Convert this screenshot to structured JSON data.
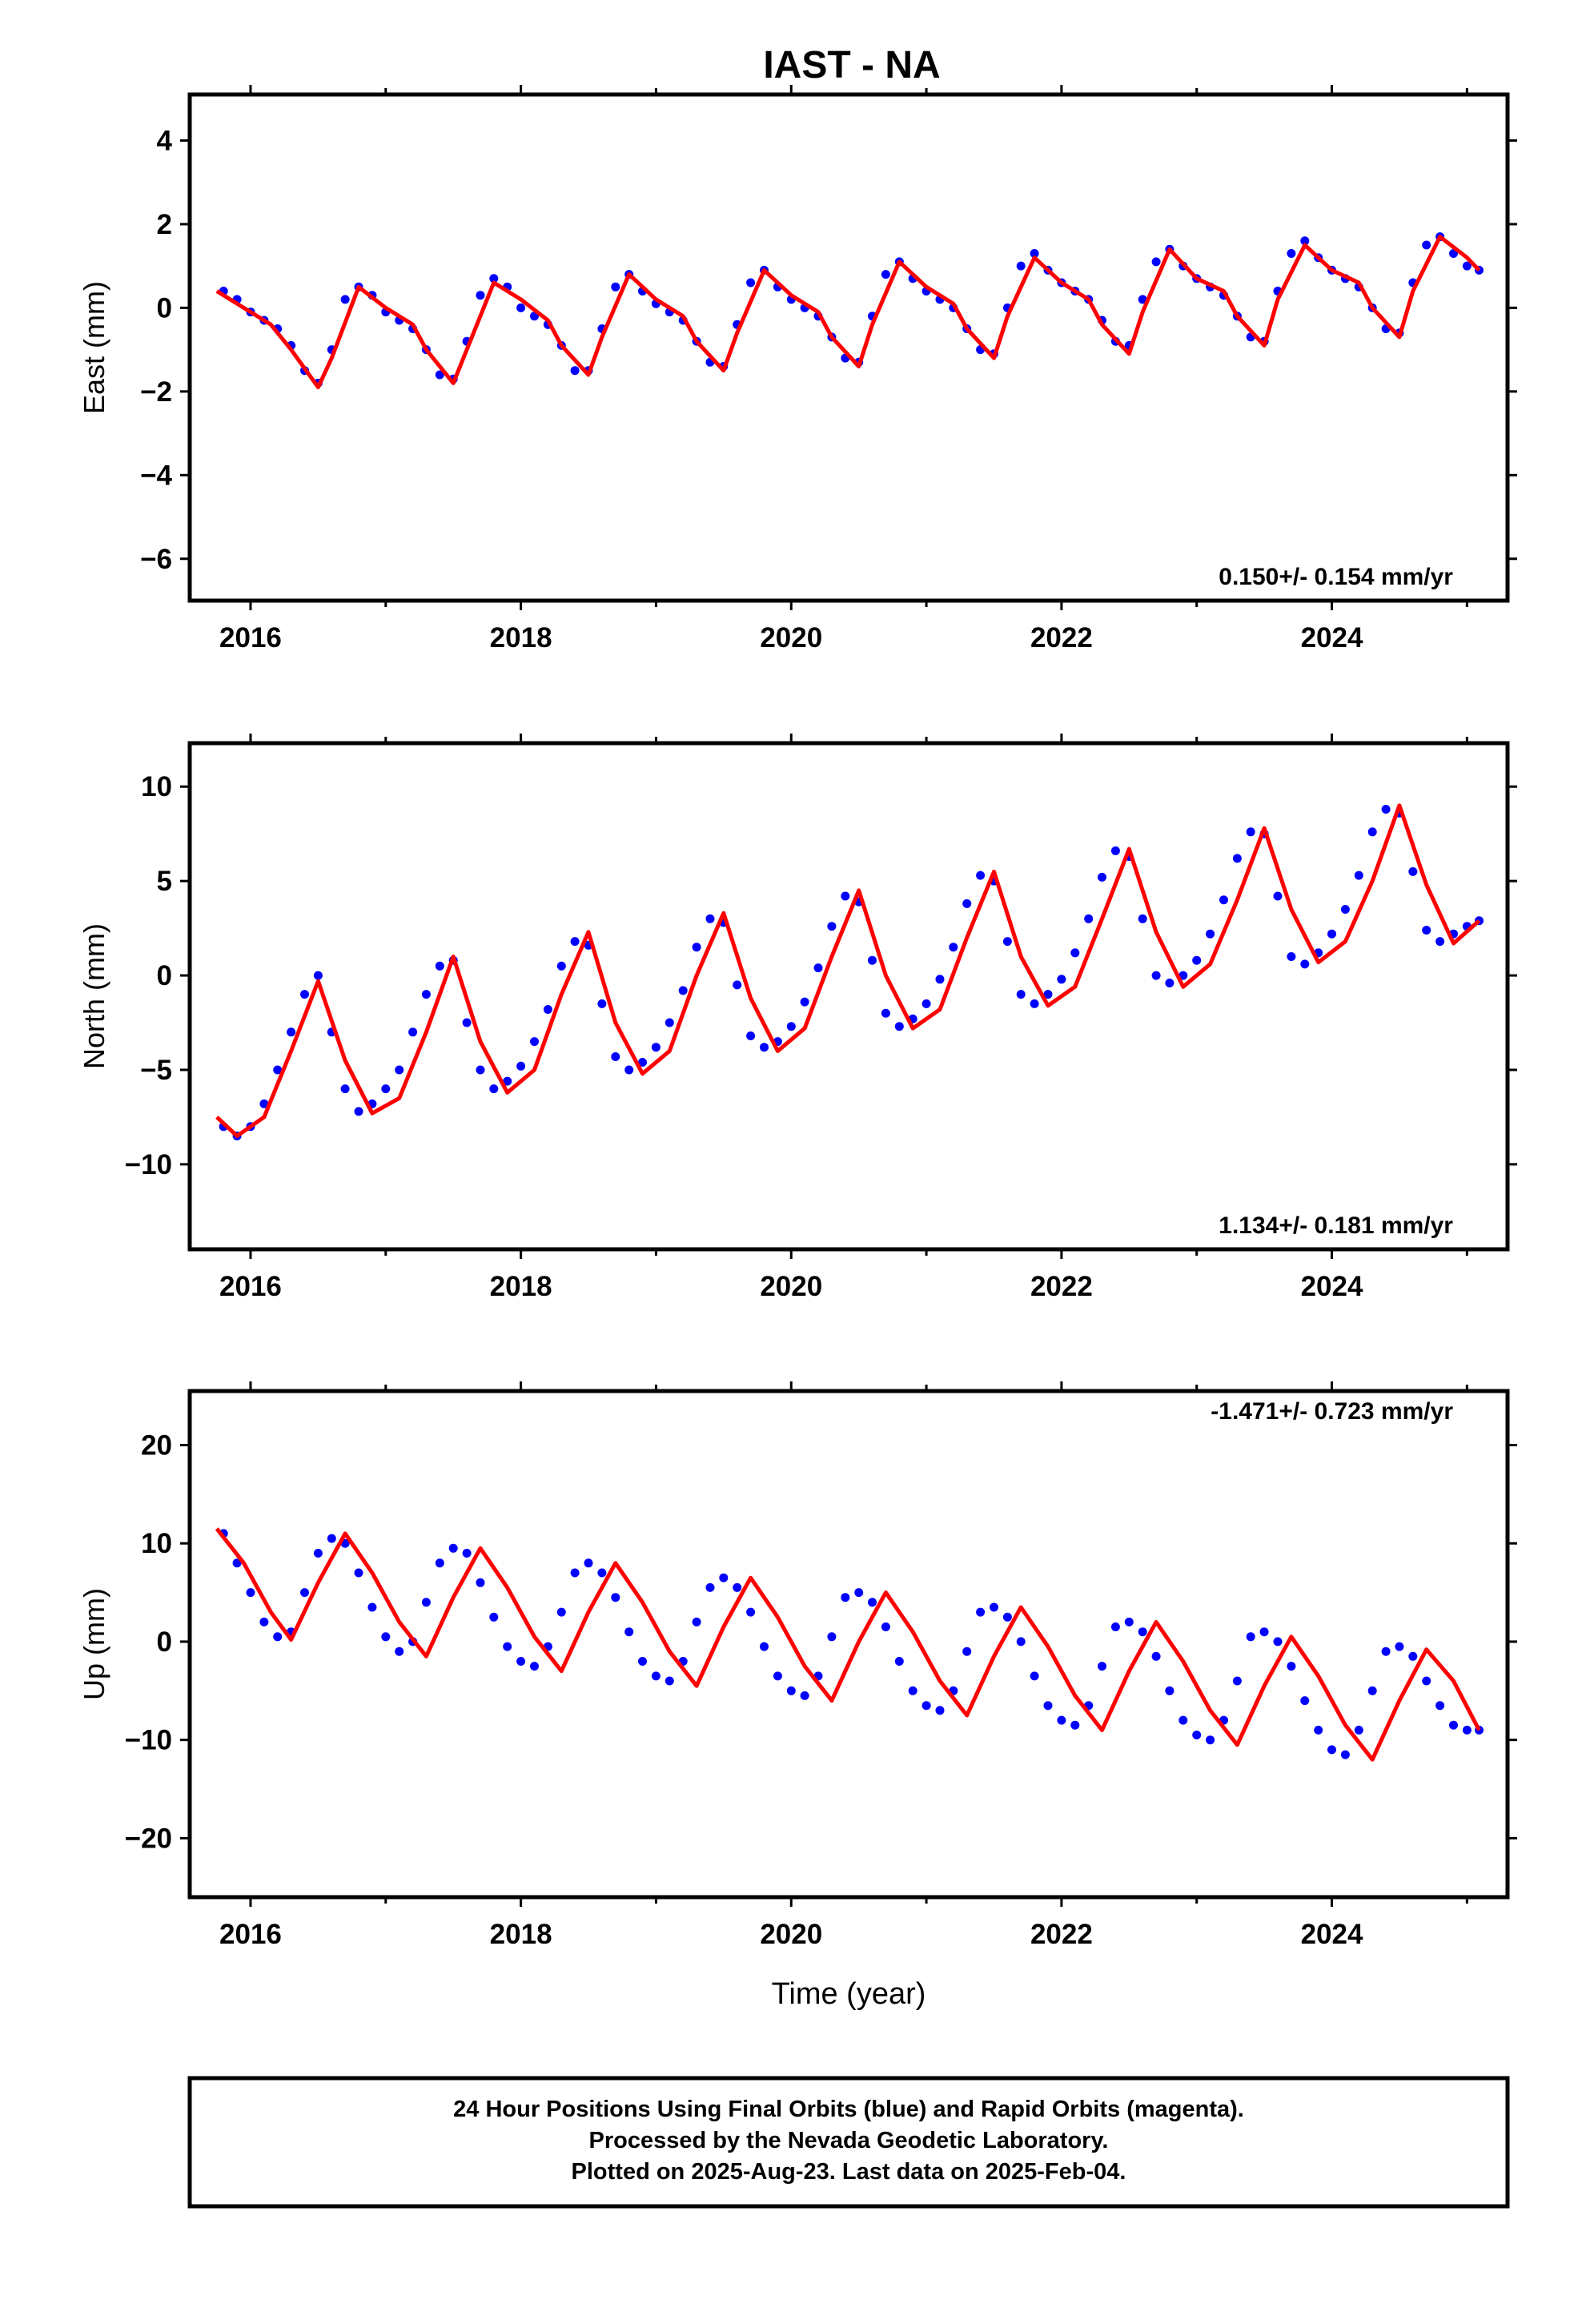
{
  "title": "IAST - NA",
  "xlabel": "Time (year)",
  "footer": [
    "24 Hour Positions Using Final Orbits (blue) and Rapid Orbits (magenta).",
    "Processed by the Nevada Geodetic Laboratory.",
    "Plotted on 2025-Aug-23. Last data on 2025-Feb-04."
  ],
  "colors": {
    "points": "#0000ff",
    "fit": "#ff0000",
    "frame": "#000000"
  },
  "chart_data": [
    {
      "type": "scatter",
      "ylabel": "East (mm)",
      "rate": "0.150+/- 0.154 mm/yr",
      "xlim": [
        2015.55,
        2025.3
      ],
      "ylim": [
        -7.0,
        5.1
      ],
      "xticks": [
        2016,
        2018,
        2020,
        2022,
        2024
      ],
      "yticks": [
        4,
        2,
        0,
        -2,
        -4,
        -6
      ],
      "ytick_labels": [
        "4",
        "2",
        "0",
        "−2",
        "−4",
        "−6"
      ],
      "series": [
        {
          "kind": "points",
          "x": [
            2015.8,
            2015.9,
            2016.0,
            2016.1,
            2016.2,
            2016.3,
            2016.4,
            2016.5,
            2016.6,
            2016.7,
            2016.8,
            2016.9,
            2017.0,
            2017.1,
            2017.2,
            2017.3,
            2017.4,
            2017.5,
            2017.6,
            2017.7,
            2017.8,
            2017.9,
            2018.0,
            2018.1,
            2018.2,
            2018.3,
            2018.4,
            2018.5,
            2018.6,
            2018.7,
            2018.8,
            2018.9,
            2019.0,
            2019.1,
            2019.2,
            2019.3,
            2019.4,
            2019.5,
            2019.6,
            2019.7,
            2019.8,
            2019.9,
            2020.0,
            2020.1,
            2020.2,
            2020.3,
            2020.4,
            2020.5,
            2020.6,
            2020.7,
            2020.8,
            2020.9,
            2021.0,
            2021.1,
            2021.2,
            2021.3,
            2021.4,
            2021.5,
            2021.6,
            2021.7,
            2021.8,
            2021.9,
            2022.0,
            2022.1,
            2022.2,
            2022.3,
            2022.4,
            2022.5,
            2022.6,
            2022.7,
            2022.8,
            2022.9,
            2023.0,
            2023.1,
            2023.2,
            2023.3,
            2023.4,
            2023.5,
            2023.6,
            2023.7,
            2023.8,
            2023.9,
            2024.0,
            2024.1,
            2024.2,
            2024.3,
            2024.4,
            2024.5,
            2024.6,
            2024.7,
            2024.8,
            2024.9,
            2025.0,
            2025.09
          ],
          "y": [
            0.4,
            0.2,
            -0.1,
            -0.3,
            -0.5,
            -0.9,
            -1.5,
            -1.8,
            -1.0,
            0.2,
            0.5,
            0.3,
            -0.1,
            -0.3,
            -0.5,
            -1.0,
            -1.6,
            -1.7,
            -0.8,
            0.3,
            0.7,
            0.5,
            0.0,
            -0.2,
            -0.4,
            -0.9,
            -1.5,
            -1.5,
            -0.5,
            0.5,
            0.8,
            0.4,
            0.1,
            -0.1,
            -0.3,
            -0.8,
            -1.3,
            -1.4,
            -0.4,
            0.6,
            0.9,
            0.5,
            0.2,
            0.0,
            -0.2,
            -0.7,
            -1.2,
            -1.3,
            -0.2,
            0.8,
            1.1,
            0.7,
            0.4,
            0.2,
            0.0,
            -0.5,
            -1.0,
            -1.1,
            0.0,
            1.0,
            1.3,
            0.9,
            0.6,
            0.4,
            0.2,
            -0.3,
            -0.8,
            -0.9,
            0.2,
            1.1,
            1.4,
            1.0,
            0.7,
            0.5,
            0.3,
            -0.2,
            -0.7,
            -0.8,
            0.4,
            1.3,
            1.6,
            1.2,
            0.9,
            0.7,
            0.5,
            0.0,
            -0.5,
            -0.6,
            0.6,
            1.5,
            1.7,
            1.3,
            1.0,
            0.9
          ]
        },
        {
          "kind": "fit",
          "x": [
            2015.75,
            2015.95,
            2016.15,
            2016.3,
            2016.5,
            2016.6,
            2016.8,
            2017.0,
            2017.2,
            2017.3,
            2017.5,
            2017.6,
            2017.8,
            2018.0,
            2018.2,
            2018.3,
            2018.5,
            2018.6,
            2018.8,
            2019.0,
            2019.2,
            2019.3,
            2019.5,
            2019.6,
            2019.8,
            2020.0,
            2020.2,
            2020.3,
            2020.5,
            2020.6,
            2020.8,
            2021.0,
            2021.2,
            2021.3,
            2021.5,
            2021.6,
            2021.8,
            2022.0,
            2022.2,
            2022.3,
            2022.5,
            2022.6,
            2022.8,
            2023.0,
            2023.2,
            2023.3,
            2023.5,
            2023.6,
            2023.8,
            2024.0,
            2024.2,
            2024.3,
            2024.5,
            2024.6,
            2024.8,
            2025.0,
            2025.09
          ],
          "y": [
            0.4,
            0.0,
            -0.4,
            -1.0,
            -1.9,
            -1.2,
            0.5,
            0.0,
            -0.4,
            -1.0,
            -1.8,
            -1.0,
            0.6,
            0.2,
            -0.3,
            -0.9,
            -1.6,
            -0.7,
            0.8,
            0.2,
            -0.2,
            -0.8,
            -1.5,
            -0.6,
            0.9,
            0.3,
            -0.1,
            -0.7,
            -1.4,
            -0.4,
            1.1,
            0.5,
            0.1,
            -0.5,
            -1.2,
            -0.2,
            1.2,
            0.6,
            0.2,
            -0.4,
            -1.1,
            -0.1,
            1.4,
            0.7,
            0.4,
            -0.2,
            -0.9,
            0.2,
            1.5,
            0.9,
            0.6,
            0.0,
            -0.7,
            0.4,
            1.7,
            1.2,
            0.9
          ]
        }
      ]
    },
    {
      "type": "scatter",
      "ylabel": "North (mm)",
      "rate": "1.134+/- 0.181 mm/yr",
      "xlim": [
        2015.55,
        2025.3
      ],
      "ylim": [
        -14.5,
        12.3
      ],
      "xticks": [
        2016,
        2018,
        2020,
        2022,
        2024
      ],
      "yticks": [
        10,
        5,
        0,
        -5,
        -10
      ],
      "ytick_labels": [
        "10",
        "5",
        "0",
        "−5",
        "−10"
      ],
      "series": [
        {
          "kind": "points",
          "x": [
            2015.8,
            2015.9,
            2016.0,
            2016.1,
            2016.2,
            2016.3,
            2016.4,
            2016.5,
            2016.6,
            2016.7,
            2016.8,
            2016.9,
            2017.0,
            2017.1,
            2017.2,
            2017.3,
            2017.4,
            2017.5,
            2017.6,
            2017.7,
            2017.8,
            2017.9,
            2018.0,
            2018.1,
            2018.2,
            2018.3,
            2018.4,
            2018.5,
            2018.6,
            2018.7,
            2018.8,
            2018.9,
            2019.0,
            2019.1,
            2019.2,
            2019.3,
            2019.4,
            2019.5,
            2019.6,
            2019.7,
            2019.8,
            2019.9,
            2020.0,
            2020.1,
            2020.2,
            2020.3,
            2020.4,
            2020.5,
            2020.6,
            2020.7,
            2020.8,
            2020.9,
            2021.0,
            2021.1,
            2021.2,
            2021.3,
            2021.4,
            2021.5,
            2021.6,
            2021.7,
            2021.8,
            2021.9,
            2022.0,
            2022.1,
            2022.2,
            2022.3,
            2022.4,
            2022.5,
            2022.6,
            2022.7,
            2022.8,
            2022.9,
            2023.0,
            2023.1,
            2023.2,
            2023.3,
            2023.4,
            2023.5,
            2023.6,
            2023.7,
            2023.8,
            2023.9,
            2024.0,
            2024.1,
            2024.2,
            2024.3,
            2024.4,
            2024.5,
            2024.6,
            2024.7,
            2024.8,
            2024.9,
            2025.0,
            2025.09
          ],
          "y": [
            -8.0,
            -8.5,
            -8.0,
            -6.8,
            -5.0,
            -3.0,
            -1.0,
            0.0,
            -3.0,
            -6.0,
            -7.2,
            -6.8,
            -6.0,
            -5.0,
            -3.0,
            -1.0,
            0.5,
            0.8,
            -2.5,
            -5.0,
            -6.0,
            -5.6,
            -4.8,
            -3.5,
            -1.8,
            0.5,
            1.8,
            1.6,
            -1.5,
            -4.3,
            -5.0,
            -4.6,
            -3.8,
            -2.5,
            -0.8,
            1.5,
            3.0,
            2.8,
            -0.5,
            -3.2,
            -3.8,
            -3.5,
            -2.7,
            -1.4,
            0.4,
            2.6,
            4.2,
            3.9,
            0.8,
            -2.0,
            -2.7,
            -2.3,
            -1.5,
            -0.2,
            1.5,
            3.8,
            5.3,
            5.0,
            1.8,
            -1.0,
            -1.5,
            -1.0,
            -0.2,
            1.2,
            3.0,
            5.2,
            6.6,
            6.3,
            3.0,
            0.0,
            -0.4,
            0.0,
            0.8,
            2.2,
            4.0,
            6.2,
            7.6,
            7.5,
            4.2,
            1.0,
            0.6,
            1.2,
            2.2,
            3.5,
            5.3,
            7.6,
            8.8,
            8.6,
            5.5,
            2.4,
            1.8,
            2.2,
            2.6,
            2.9
          ]
        },
        {
          "kind": "fit",
          "x": [
            2015.75,
            2015.9,
            2016.1,
            2016.3,
            2016.5,
            2016.7,
            2016.9,
            2017.1,
            2017.3,
            2017.5,
            2017.7,
            2017.9,
            2018.1,
            2018.3,
            2018.5,
            2018.7,
            2018.9,
            2019.1,
            2019.3,
            2019.5,
            2019.7,
            2019.9,
            2020.1,
            2020.3,
            2020.5,
            2020.7,
            2020.9,
            2021.1,
            2021.3,
            2021.5,
            2021.7,
            2021.9,
            2022.1,
            2022.3,
            2022.5,
            2022.7,
            2022.9,
            2023.1,
            2023.3,
            2023.5,
            2023.7,
            2023.9,
            2024.1,
            2024.3,
            2024.5,
            2024.7,
            2024.9,
            2025.09
          ],
          "y": [
            -7.5,
            -8.5,
            -7.5,
            -4.0,
            -0.3,
            -4.5,
            -7.3,
            -6.5,
            -3.0,
            1.0,
            -3.5,
            -6.2,
            -5.0,
            -1.0,
            2.3,
            -2.5,
            -5.2,
            -4.0,
            0.0,
            3.3,
            -1.2,
            -4.0,
            -2.8,
            1.0,
            4.5,
            0.0,
            -2.8,
            -1.8,
            2.0,
            5.5,
            1.0,
            -1.6,
            -0.6,
            3.0,
            6.7,
            2.3,
            -0.6,
            0.6,
            4.0,
            7.8,
            3.5,
            0.7,
            1.8,
            5.0,
            9.0,
            4.8,
            1.7,
            2.9
          ]
        }
      ]
    },
    {
      "type": "scatter",
      "ylabel": "Up (mm)",
      "rate": "-1.471+/- 0.723 mm/yr",
      "xlim": [
        2015.55,
        2025.3
      ],
      "ylim": [
        -26.0,
        25.5
      ],
      "xticks": [
        2016,
        2018,
        2020,
        2022,
        2024
      ],
      "yticks": [
        20,
        10,
        0,
        -10,
        -20
      ],
      "ytick_labels": [
        "20",
        "10",
        "0",
        "−10",
        "−20"
      ],
      "series": [
        {
          "kind": "points",
          "x": [
            2015.8,
            2015.9,
            2016.0,
            2016.1,
            2016.2,
            2016.3,
            2016.4,
            2016.5,
            2016.6,
            2016.7,
            2016.8,
            2016.9,
            2017.0,
            2017.1,
            2017.2,
            2017.3,
            2017.4,
            2017.5,
            2017.6,
            2017.7,
            2017.8,
            2017.9,
            2018.0,
            2018.1,
            2018.2,
            2018.3,
            2018.4,
            2018.5,
            2018.6,
            2018.7,
            2018.8,
            2018.9,
            2019.0,
            2019.1,
            2019.2,
            2019.3,
            2019.4,
            2019.5,
            2019.6,
            2019.7,
            2019.8,
            2019.9,
            2020.0,
            2020.1,
            2020.2,
            2020.3,
            2020.4,
            2020.5,
            2020.6,
            2020.7,
            2020.8,
            2020.9,
            2021.0,
            2021.1,
            2021.2,
            2021.3,
            2021.4,
            2021.5,
            2021.6,
            2021.7,
            2021.8,
            2021.9,
            2022.0,
            2022.1,
            2022.2,
            2022.3,
            2022.4,
            2022.5,
            2022.6,
            2022.7,
            2022.8,
            2022.9,
            2023.0,
            2023.1,
            2023.2,
            2023.3,
            2023.4,
            2023.5,
            2023.6,
            2023.7,
            2023.8,
            2023.9,
            2024.0,
            2024.1,
            2024.2,
            2024.3,
            2024.4,
            2024.5,
            2024.6,
            2024.7,
            2024.8,
            2024.9,
            2025.0,
            2025.09
          ],
          "y": [
            11.0,
            8.0,
            5.0,
            2.0,
            0.5,
            1.0,
            5.0,
            9.0,
            10.5,
            10.0,
            7.0,
            3.5,
            0.5,
            -1.0,
            0.0,
            4.0,
            8.0,
            9.5,
            9.0,
            6.0,
            2.5,
            -0.5,
            -2.0,
            -2.5,
            -0.5,
            3.0,
            7.0,
            8.0,
            7.0,
            4.5,
            1.0,
            -2.0,
            -3.5,
            -4.0,
            -2.0,
            2.0,
            5.5,
            6.5,
            5.5,
            3.0,
            -0.5,
            -3.5,
            -5.0,
            -5.5,
            -3.5,
            0.5,
            4.5,
            5.0,
            4.0,
            1.5,
            -2.0,
            -5.0,
            -6.5,
            -7.0,
            -5.0,
            -1.0,
            3.0,
            3.5,
            2.5,
            0.0,
            -3.5,
            -6.5,
            -8.0,
            -8.5,
            -6.5,
            -2.5,
            1.5,
            2.0,
            1.0,
            -1.5,
            -5.0,
            -8.0,
            -9.5,
            -10.0,
            -8.0,
            -4.0,
            0.5,
            1.0,
            0.0,
            -2.5,
            -6.0,
            -9.0,
            -11.0,
            -11.5,
            -9.0,
            -5.0,
            -1.0,
            -0.5,
            -1.5,
            -4.0,
            -6.5,
            -8.5,
            -9.0,
            -9.0
          ]
        },
        {
          "kind": "fit",
          "x": [
            2015.75,
            2015.95,
            2016.15,
            2016.3,
            2016.5,
            2016.7,
            2016.9,
            2017.1,
            2017.3,
            2017.5,
            2017.7,
            2017.9,
            2018.1,
            2018.3,
            2018.5,
            2018.7,
            2018.9,
            2019.1,
            2019.3,
            2019.5,
            2019.7,
            2019.9,
            2020.1,
            2020.3,
            2020.5,
            2020.7,
            2020.9,
            2021.1,
            2021.3,
            2021.5,
            2021.7,
            2021.9,
            2022.1,
            2022.3,
            2022.5,
            2022.7,
            2022.9,
            2023.1,
            2023.3,
            2023.5,
            2023.7,
            2023.9,
            2024.1,
            2024.3,
            2024.5,
            2024.7,
            2024.9,
            2025.09
          ],
          "y": [
            11.5,
            8.0,
            3.0,
            0.2,
            6.0,
            11.0,
            7.0,
            2.0,
            -1.5,
            4.5,
            9.5,
            5.5,
            0.5,
            -3.0,
            3.0,
            8.0,
            4.0,
            -1.0,
            -4.5,
            1.5,
            6.5,
            2.5,
            -2.5,
            -6.0,
            0.0,
            5.0,
            1.0,
            -4.0,
            -7.5,
            -1.5,
            3.5,
            -0.5,
            -5.5,
            -9.0,
            -3.0,
            2.0,
            -2.0,
            -7.0,
            -10.5,
            -4.5,
            0.5,
            -3.5,
            -8.5,
            -12.0,
            -6.0,
            -0.8,
            -4.0,
            -9.0
          ]
        }
      ]
    }
  ]
}
